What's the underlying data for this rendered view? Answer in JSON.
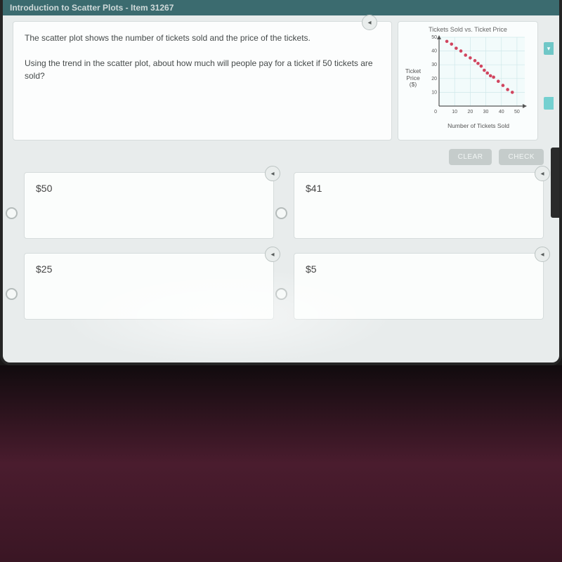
{
  "header": {
    "title": "Introduction to Scatter Plots - Item 31267"
  },
  "question": {
    "line1": "The scatter plot shows the number of tickets sold and the price of the tickets.",
    "line2": "Using the trend in the scatter plot, about how much will people pay for a ticket if 50 tickets are sold?"
  },
  "chart": {
    "type": "scatter",
    "title": "Tickets Sold vs. Ticket Price",
    "ylabel_l1": "Ticket",
    "ylabel_l2": "Price",
    "ylabel_l3": "($)",
    "xlabel": "Number of Tickets Sold",
    "xlim": [
      0,
      55
    ],
    "ylim": [
      0,
      50
    ],
    "xticks": [
      10,
      20,
      30,
      40,
      50
    ],
    "yticks": [
      10,
      20,
      30,
      40,
      50
    ],
    "point_color": "#d1455f",
    "grid_color": "#cfe8ea",
    "axis_color": "#555555",
    "bg_color": "#f2fbfb",
    "points": [
      [
        5,
        47
      ],
      [
        8,
        45
      ],
      [
        11,
        42
      ],
      [
        14,
        40
      ],
      [
        17,
        37
      ],
      [
        20,
        35
      ],
      [
        23,
        33
      ],
      [
        25,
        31
      ],
      [
        27,
        29
      ],
      [
        29,
        26
      ],
      [
        31,
        24
      ],
      [
        33,
        22
      ],
      [
        35,
        21
      ],
      [
        38,
        18
      ],
      [
        41,
        15
      ],
      [
        44,
        12
      ],
      [
        47,
        10
      ]
    ]
  },
  "actions": {
    "clear": "CLEAR",
    "check": "CHECK"
  },
  "answers": [
    {
      "label": "$50"
    },
    {
      "label": "$41"
    },
    {
      "label": "$25"
    },
    {
      "label": "$5"
    }
  ],
  "icons": {
    "speaker": "◂"
  }
}
